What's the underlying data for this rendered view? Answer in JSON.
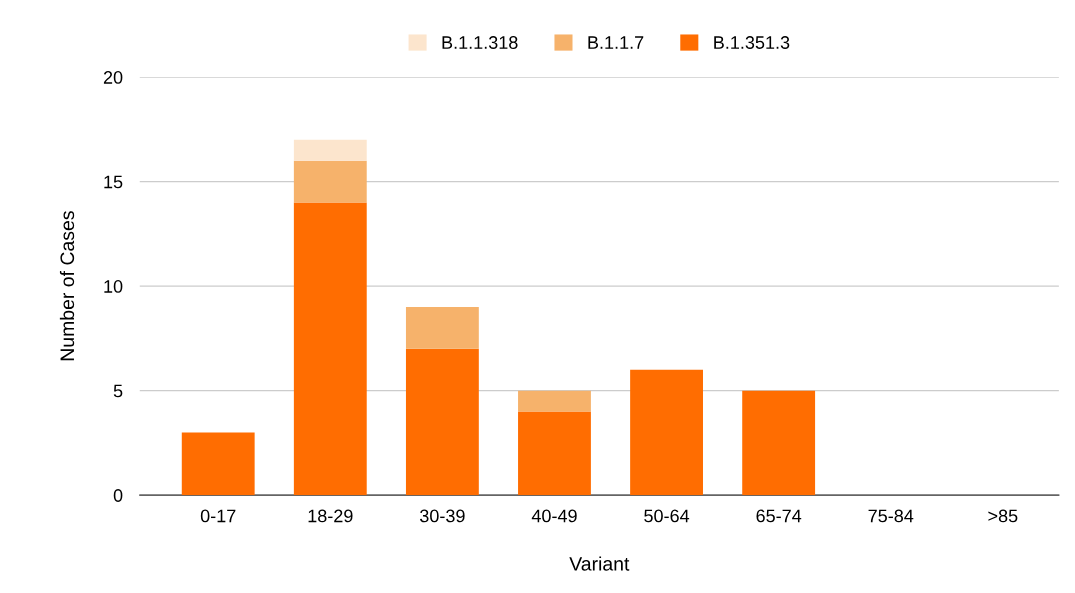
{
  "chart_data": {
    "type": "bar",
    "stacked": true,
    "xlabel": "Variant",
    "ylabel": "Number of Cases",
    "categories": [
      "0-17",
      "18-29",
      "30-39",
      "40-49",
      "50-64",
      "65-74",
      "75-84",
      ">85"
    ],
    "series": [
      {
        "name": "B.1.351.3",
        "color": "#ff6d01",
        "values": [
          3,
          14,
          7,
          4,
          6,
          5,
          0,
          0
        ]
      },
      {
        "name": "B.1.1.7",
        "color": "#f6b26b",
        "values": [
          0,
          2,
          2,
          1,
          0,
          0,
          0,
          0
        ]
      },
      {
        "name": "B.1.1.318",
        "color": "#fce5cd",
        "values": [
          0,
          1,
          0,
          0,
          0,
          0,
          0,
          0
        ]
      }
    ],
    "ylim": [
      0,
      20
    ],
    "yticks": [
      0,
      5,
      10,
      15,
      20
    ],
    "grid": "y",
    "legend": "top"
  }
}
